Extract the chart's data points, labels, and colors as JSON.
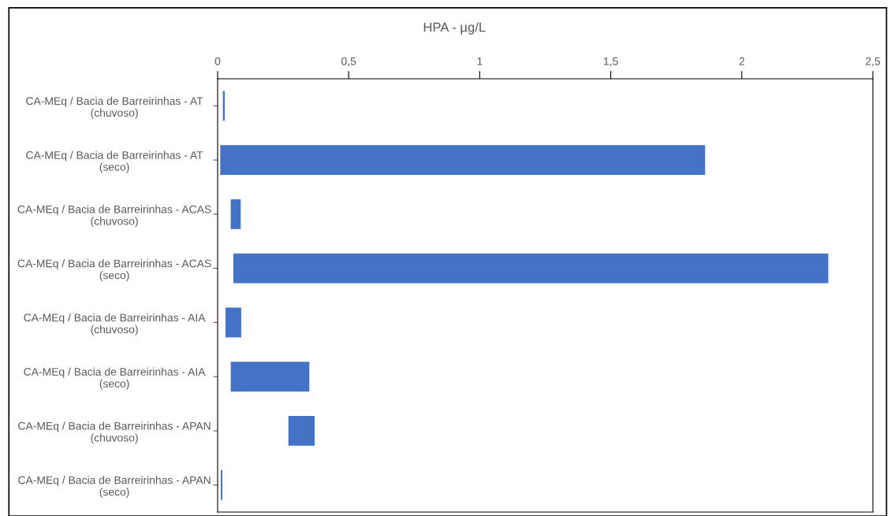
{
  "chart_data": {
    "type": "bar",
    "orientation": "horizontal",
    "title": "HPA - µg/L",
    "categories": [
      "CA-MEq / Bacia de Barreirinhas - AT\n(chuvoso)",
      "CA-MEq / Bacia de Barreirinhas - AT\n(seco)",
      "CA-MEq / Bacia de Barreirinhas - ACAS\n(chuvoso)",
      "CA-MEq / Bacia de Barreirinhas - ACAS\n(seco)",
      "CA-MEq / Bacia de Barreirinhas - AIA\n(chuvoso)",
      "CA-MEq / Bacia de Barreirinhas - AIA\n(seco)",
      "CA-MEq / Bacia de Barreirinhas - APAN\n(chuvoso)",
      "CA-MEq / Bacia de Barreirinhas - APAN\n(seco)"
    ],
    "base": [
      0.02,
      0.01,
      0.05,
      0.06,
      0.03,
      0.05,
      0.27,
      0.012
    ],
    "values": [
      0.007,
      1.85,
      0.038,
      2.27,
      0.06,
      0.3,
      0.1,
      0.006
    ],
    "color": "#4472c4",
    "xlim": [
      0,
      2.5
    ],
    "xticks": [
      {
        "value": 0,
        "label": "0"
      },
      {
        "value": 0.5,
        "label": "0,5"
      },
      {
        "value": 1,
        "label": "1"
      },
      {
        "value": 1.5,
        "label": "1,5"
      },
      {
        "value": 2,
        "label": "2"
      },
      {
        "value": 2.5,
        "label": "2,5"
      }
    ],
    "grid": false
  }
}
